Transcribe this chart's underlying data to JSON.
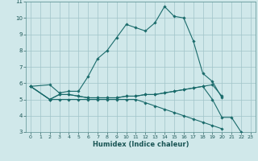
{
  "background_color": "#d0e8ea",
  "grid_color": "#a0c4c8",
  "line_color": "#1a6b6b",
  "xlabel": "Humidex (Indice chaleur)",
  "xlim": [
    -0.5,
    23.5
  ],
  "ylim": [
    3,
    11
  ],
  "yticks": [
    3,
    4,
    5,
    6,
    7,
    8,
    9,
    10,
    11
  ],
  "xticks": [
    0,
    1,
    2,
    3,
    4,
    5,
    6,
    7,
    8,
    9,
    10,
    11,
    12,
    13,
    14,
    15,
    16,
    17,
    18,
    19,
    20,
    21,
    22,
    23
  ],
  "series": [
    {
      "x": [
        0,
        2,
        3,
        4,
        5,
        6,
        7,
        8,
        9,
        10,
        11,
        12,
        13,
        14,
        15,
        16,
        17,
        18,
        19,
        20
      ],
      "y": [
        5.8,
        5.9,
        5.4,
        5.5,
        5.5,
        6.4,
        7.5,
        8.0,
        8.8,
        9.6,
        9.4,
        9.2,
        9.7,
        10.7,
        10.1,
        10.0,
        8.6,
        6.6,
        6.1,
        5.1
      ]
    },
    {
      "x": [
        0,
        2,
        3,
        4,
        5,
        6,
        7,
        8,
        9,
        10,
        11,
        12,
        13,
        14,
        15,
        16,
        17,
        18,
        19,
        20
      ],
      "y": [
        5.8,
        5.0,
        5.3,
        5.3,
        5.2,
        5.1,
        5.1,
        5.1,
        5.1,
        5.2,
        5.2,
        5.3,
        5.3,
        5.4,
        5.5,
        5.6,
        5.7,
        5.8,
        5.9,
        5.2
      ]
    },
    {
      "x": [
        0,
        2,
        3,
        4,
        5,
        6,
        7,
        8,
        9,
        10,
        11,
        12,
        13,
        14,
        15,
        16,
        17,
        18,
        19,
        20,
        21,
        22
      ],
      "y": [
        5.8,
        5.0,
        5.3,
        5.3,
        5.2,
        5.1,
        5.1,
        5.1,
        5.1,
        5.2,
        5.2,
        5.3,
        5.3,
        5.4,
        5.5,
        5.6,
        5.7,
        5.8,
        5.0,
        3.9,
        3.9,
        3.0
      ]
    },
    {
      "x": [
        0,
        2,
        3,
        4,
        5,
        6,
        7,
        8,
        9,
        10,
        11,
        12,
        13,
        14,
        15,
        16,
        17,
        18,
        19,
        20
      ],
      "y": [
        5.8,
        5.0,
        5.0,
        5.0,
        5.0,
        5.0,
        5.0,
        5.0,
        5.0,
        5.0,
        5.0,
        4.8,
        4.6,
        4.4,
        4.2,
        4.0,
        3.8,
        3.6,
        3.4,
        3.2
      ]
    }
  ]
}
